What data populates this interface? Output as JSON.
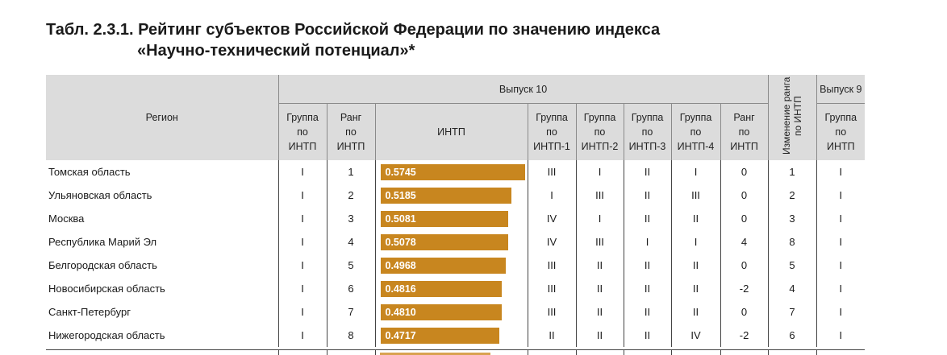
{
  "title": {
    "line1": "Табл. 2.3.1. Рейтинг субъектов Российской Федерации по значению индекса",
    "line2": "«Научно-технический потенциал»*"
  },
  "headers": {
    "region": "Регион",
    "release10": "Выпуск 10",
    "release9": "Выпуск 9",
    "rank_change": "Изменение ранга по ИНТП",
    "group_intp": [
      "Группа",
      "по",
      "ИНТП"
    ],
    "rank_intp": [
      "Ранг",
      "по",
      "ИНТП"
    ],
    "intp": "ИНТП",
    "group1": [
      "Группа",
      "по",
      "ИНТП-1"
    ],
    "group2": [
      "Группа",
      "по",
      "ИНТП-2"
    ],
    "group3": [
      "Группа",
      "по",
      "ИНТП-3"
    ],
    "group4": [
      "Группа",
      "по",
      "ИНТП-4"
    ],
    "rank9": [
      "Ранг",
      "по",
      "ИНТП"
    ],
    "group9": [
      "Группа",
      "по",
      "ИНТП"
    ]
  },
  "colors": {
    "bar": "#c8861f",
    "header_bg": "#dcdcdc"
  },
  "intp_scale_max": 0.5745,
  "rows": [
    {
      "region": "Томская область",
      "group": "I",
      "rank": "1",
      "intp": "0.5745",
      "intp_value": 0.5745,
      "g1": "III",
      "g2": "I",
      "g3": "II",
      "g4": "I",
      "change": "0",
      "rank9": "1",
      "group9": "I"
    },
    {
      "region": "Ульяновская область",
      "group": "I",
      "rank": "2",
      "intp": "0.5185",
      "intp_value": 0.5185,
      "g1": "I",
      "g2": "III",
      "g3": "II",
      "g4": "III",
      "change": "0",
      "rank9": "2",
      "group9": "I"
    },
    {
      "region": "Москва",
      "group": "I",
      "rank": "3",
      "intp": "0.5081",
      "intp_value": 0.5081,
      "g1": "IV",
      "g2": "I",
      "g3": "II",
      "g4": "II",
      "change": "0",
      "rank9": "3",
      "group9": "I"
    },
    {
      "region": "Республика Марий Эл",
      "group": "I",
      "rank": "4",
      "intp": "0.5078",
      "intp_value": 0.5078,
      "g1": "IV",
      "g2": "III",
      "g3": "I",
      "g4": "I",
      "change": "4",
      "rank9": "8",
      "group9": "I"
    },
    {
      "region": "Белгородская область",
      "group": "I",
      "rank": "5",
      "intp": "0.4968",
      "intp_value": 0.4968,
      "g1": "III",
      "g2": "II",
      "g3": "II",
      "g4": "II",
      "change": "0",
      "rank9": "5",
      "group9": "I"
    },
    {
      "region": "Новосибирская область",
      "group": "I",
      "rank": "6",
      "intp": "0.4816",
      "intp_value": 0.4816,
      "g1": "III",
      "g2": "II",
      "g3": "II",
      "g4": "II",
      "change": "-2",
      "rank9": "4",
      "group9": "I"
    },
    {
      "region": "Санкт-Петербург",
      "group": "I",
      "rank": "7",
      "intp": "0.4810",
      "intp_value": 0.481,
      "g1": "III",
      "g2": "II",
      "g3": "II",
      "g4": "II",
      "change": "0",
      "rank9": "7",
      "group9": "I"
    },
    {
      "region": "Нижегородская область",
      "group": "I",
      "rank": "8",
      "intp": "0.4717",
      "intp_value": 0.4717,
      "g1": "II",
      "g2": "II",
      "g3": "II",
      "g4": "IV",
      "change": "-2",
      "rank9": "6",
      "group9": "I"
    }
  ]
}
